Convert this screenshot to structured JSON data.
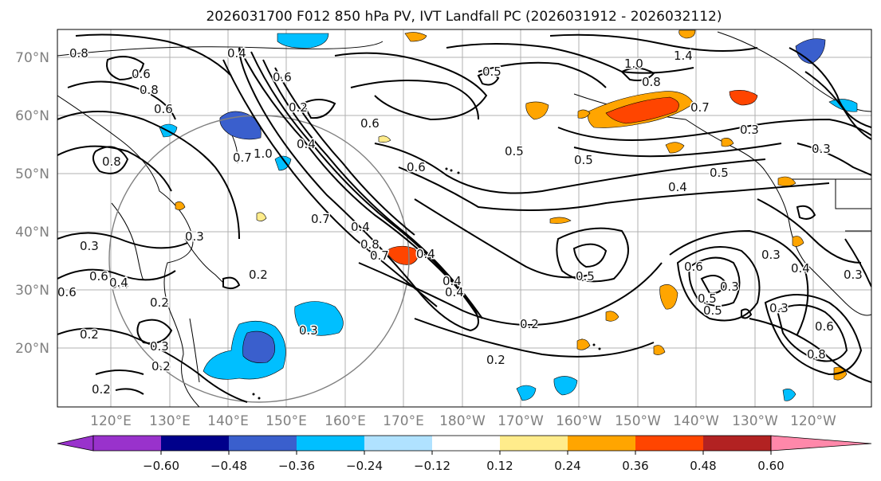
{
  "title": "2026031700 F012 850 hPa PV, IVT Landfall PC (2026031912 - 2026032112)",
  "lat_labels": [
    "70°N",
    "60°N",
    "50°N",
    "40°N",
    "30°N",
    "20°N"
  ],
  "lon_labels": [
    "120°E",
    "130°E",
    "140°E",
    "150°E",
    "160°E",
    "170°E",
    "180°W",
    "170°W",
    "160°W",
    "150°W",
    "140°W",
    "130°W",
    "120°W"
  ],
  "colorbar": {
    "ticks": [
      "−0.60",
      "−0.48",
      "−0.36",
      "−0.24",
      "−0.12",
      "0.12",
      "0.24",
      "0.36",
      "0.48",
      "0.60"
    ],
    "colors": [
      "#9932cc",
      "#00008b",
      "#3a5fcd",
      "#00bfff",
      "#b0e2ff",
      "#ffffff",
      "#ffec8b",
      "#ffa500",
      "#ff4500",
      "#b22222",
      "#ff88aa"
    ]
  },
  "contour_labels": [
    "0.8",
    "0.4",
    "0.6",
    "0.5",
    "1.0",
    "1.4",
    "0.8",
    "0.6",
    "0.8",
    "0.6",
    "0.4",
    "0.2",
    "0.7",
    "0.6",
    "0.5",
    "0.3",
    "0.3",
    "1.0",
    "0.7",
    "0.5",
    "0.8",
    "0.4",
    "0.5",
    "0.6",
    "0.7",
    "0.3",
    "0.3",
    "0.4",
    "0.8",
    "0.7",
    "0.4",
    "0.4",
    "0.3",
    "0.5",
    "0.4",
    "0.6",
    "0.3",
    "0.4",
    "0.6",
    "0.2",
    "0.6",
    "0.4",
    "0.2",
    "0.2",
    "0.3",
    "0.5",
    "0.2",
    "0.3",
    "0.5",
    "0.3",
    "0.2",
    "0.2",
    "0.6",
    "0.8",
    "0.2",
    "0.4",
    "0.3"
  ]
}
